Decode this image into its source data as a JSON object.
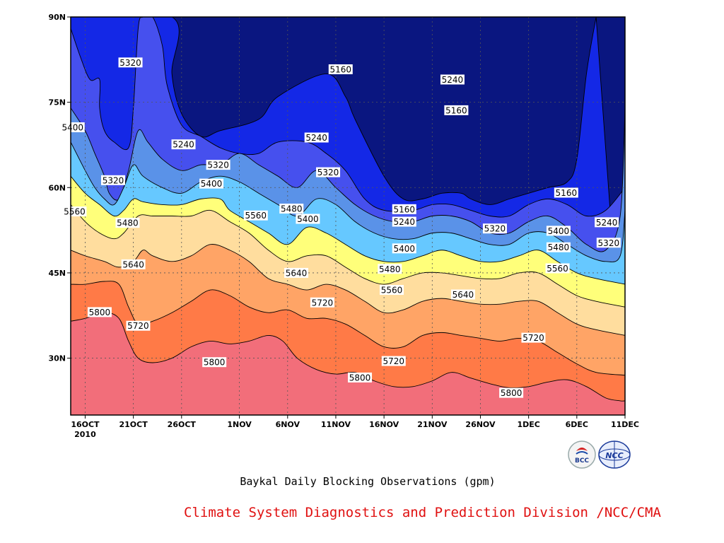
{
  "caption": "Baykal Daily Blocking Observations (gpm)",
  "footer": "Climate System Diagnostics and Prediction Division /NCC/CMA",
  "logos": {
    "left": "BCC",
    "right": "NCC"
  },
  "chart_data": {
    "type": "contour",
    "ylabel_ticks": [
      "30N",
      "45N",
      "60N",
      "75N",
      "90N"
    ],
    "x_ticks": [
      "16OCT",
      "21OCT",
      "26OCT",
      "1NOV",
      "6NOV",
      "11NOV",
      "16NOV",
      "21NOV",
      "26NOV",
      "1DEC",
      "6DEC",
      "11DEC"
    ],
    "x_year": "2010",
    "xlim_days": [
      -1.5,
      56
    ],
    "ylim": [
      20,
      90
    ],
    "levels": [
      5160,
      5240,
      5320,
      5400,
      5480,
      5560,
      5640,
      5720,
      5800
    ],
    "colors": {
      "5800_plus": "#f26e7a",
      "5720_5800": "#ff7a47",
      "5640_5720": "#ffa466",
      "5560_5640": "#ffdd9e",
      "5480_5560": "#ffff7a",
      "5400_5480": "#66c8ff",
      "5320_5400": "#5a92e8",
      "5240_5320": "#4650ee",
      "5160_5240": "#1428e6",
      "below_5160": "#0a1680"
    },
    "contour_labels": [
      {
        "text": "5320",
        "d": 4.7,
        "lat": 82.0
      },
      {
        "text": "5160",
        "d": 26.5,
        "lat": 80.8
      },
      {
        "text": "5240",
        "d": 38.1,
        "lat": 79.0
      },
      {
        "text": "5160",
        "d": 38.5,
        "lat": 73.6
      },
      {
        "text": "5400",
        "d": -1.3,
        "lat": 70.6
      },
      {
        "text": "5240",
        "d": 10.2,
        "lat": 67.6
      },
      {
        "text": "5240",
        "d": 24.0,
        "lat": 68.8
      },
      {
        "text": "5320",
        "d": 13.8,
        "lat": 64.0
      },
      {
        "text": "5320",
        "d": 2.9,
        "lat": 61.3
      },
      {
        "text": "5320",
        "d": 25.2,
        "lat": 62.7
      },
      {
        "text": "5400",
        "d": 13.1,
        "lat": 60.7
      },
      {
        "text": "5160",
        "d": 33.1,
        "lat": 56.2
      },
      {
        "text": "5160",
        "d": 49.9,
        "lat": 59.1
      },
      {
        "text": "5480",
        "d": 21.4,
        "lat": 56.3
      },
      {
        "text": "5240",
        "d": 33.1,
        "lat": 54.0
      },
      {
        "text": "5240",
        "d": 54.1,
        "lat": 53.9
      },
      {
        "text": "5560",
        "d": -1.1,
        "lat": 55.8
      },
      {
        "text": "5560",
        "d": 17.7,
        "lat": 55.1
      },
      {
        "text": "5400",
        "d": 23.1,
        "lat": 54.5
      },
      {
        "text": "5480",
        "d": 4.4,
        "lat": 53.8
      },
      {
        "text": "5320",
        "d": 42.5,
        "lat": 52.8
      },
      {
        "text": "5400",
        "d": 49.1,
        "lat": 52.4
      },
      {
        "text": "5320",
        "d": 54.3,
        "lat": 50.3
      },
      {
        "text": "5400",
        "d": 33.1,
        "lat": 49.3
      },
      {
        "text": "5480",
        "d": 49.1,
        "lat": 49.5
      },
      {
        "text": "5640",
        "d": 5.0,
        "lat": 46.5
      },
      {
        "text": "5480",
        "d": 31.6,
        "lat": 45.7
      },
      {
        "text": "5560",
        "d": 49.0,
        "lat": 45.8
      },
      {
        "text": "5640",
        "d": 21.9,
        "lat": 45.0
      },
      {
        "text": "5560",
        "d": 31.8,
        "lat": 42.0
      },
      {
        "text": "5640",
        "d": 39.2,
        "lat": 41.2
      },
      {
        "text": "5720",
        "d": 24.6,
        "lat": 39.8
      },
      {
        "text": "5800",
        "d": 1.5,
        "lat": 38.1
      },
      {
        "text": "5720",
        "d": 5.5,
        "lat": 35.7
      },
      {
        "text": "5720",
        "d": 46.5,
        "lat": 33.6
      },
      {
        "text": "5800",
        "d": 13.4,
        "lat": 29.3
      },
      {
        "text": "5720",
        "d": 32.0,
        "lat": 29.5
      },
      {
        "text": "5800",
        "d": 28.5,
        "lat": 26.6
      },
      {
        "text": "5800",
        "d": 44.2,
        "lat": 23.9
      }
    ]
  }
}
